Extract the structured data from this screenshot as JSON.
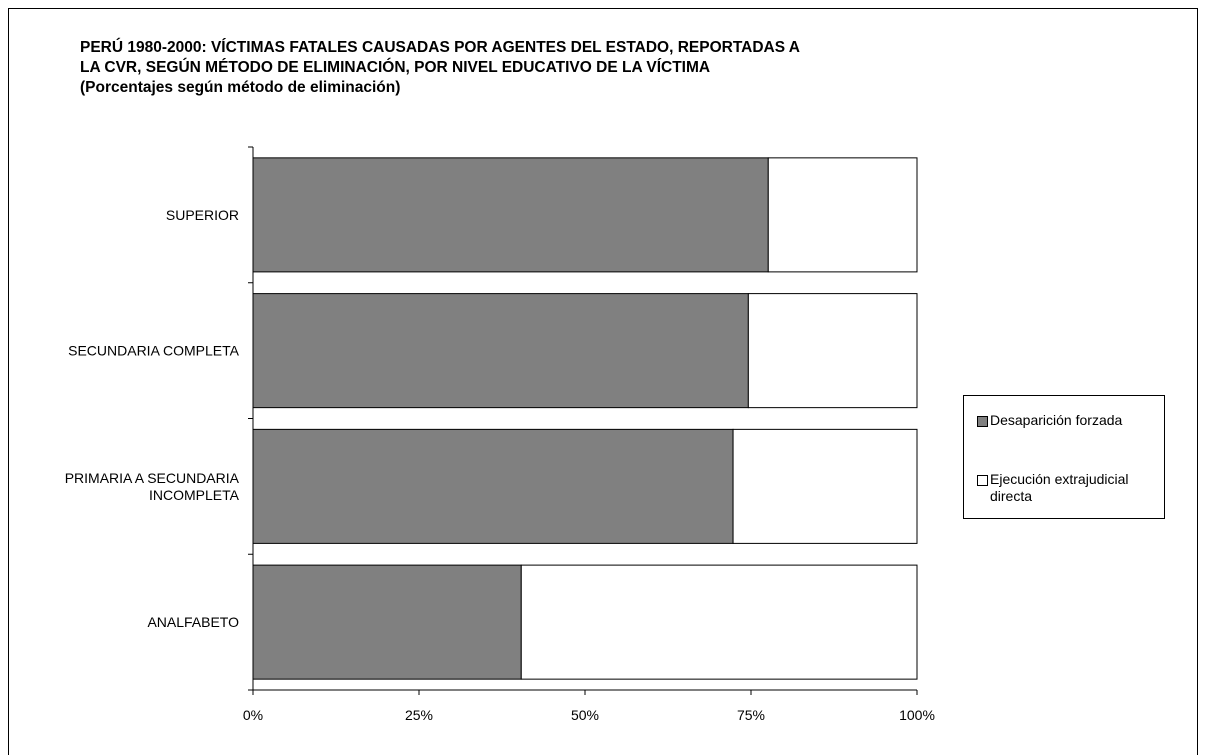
{
  "title_lines": [
    "PERÚ 1980-2000: VÍCTIMAS FATALES CAUSADAS POR AGENTES DEL ESTADO, REPORTADAS A",
    "LA CVR, SEGÚN MÉTODO DE ELIMINACIÓN, POR NIVEL EDUCATIVO DE LA VÍCTIMA",
    "(Porcentajes según método de eliminación)"
  ],
  "legend": {
    "items": [
      {
        "label": "Desaparición forzada",
        "color": "#808080"
      },
      {
        "label": "Ejecución extrajudicial directa",
        "color": "#ffffff"
      }
    ]
  },
  "chart_data": {
    "type": "bar",
    "orientation": "horizontal",
    "stacked": "percent",
    "title": "PERÚ 1980-2000: VÍCTIMAS FATALES CAUSADAS POR AGENTES DEL ESTADO, REPORTADAS A LA CVR, SEGÚN MÉTODO DE ELIMINACIÓN, POR NIVEL EDUCATIVO DE LA VÍCTIMA (Porcentajes según método de eliminación)",
    "categories": [
      [
        "SUPERIOR"
      ],
      [
        "SECUNDARIA COMPLETA"
      ],
      [
        "PRIMARIA A SECUNDARIA",
        "INCOMPLETA"
      ],
      [
        "ANALFABETO"
      ]
    ],
    "series": [
      {
        "name": "Desaparición forzada",
        "color": "#808080",
        "values": [
          77.6,
          74.6,
          72.3,
          40.4
        ]
      },
      {
        "name": "Ejecución extrajudicial directa",
        "color": "#ffffff",
        "values": [
          22.4,
          25.4,
          27.7,
          59.6
        ]
      }
    ],
    "xlim": [
      0,
      100
    ],
    "xticks": [
      "0%",
      "25%",
      "50%",
      "75%",
      "100%"
    ],
    "grid": false,
    "legend_position": "right"
  }
}
